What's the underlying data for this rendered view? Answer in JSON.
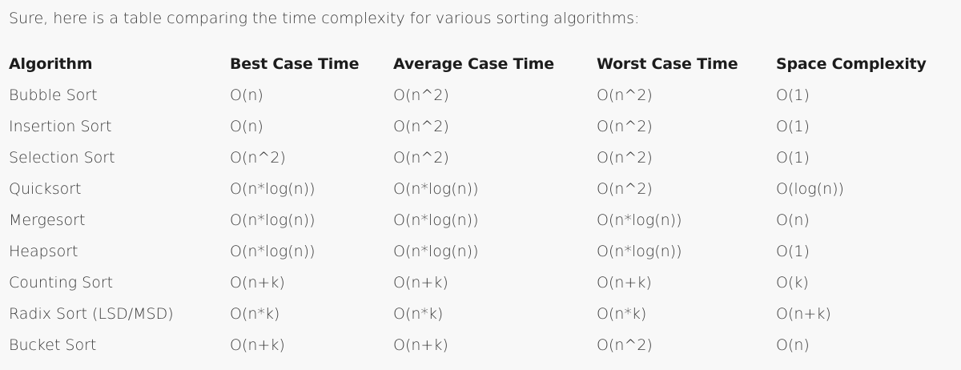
{
  "intro": "Sure, here is a table comparing the time complexity for various sorting algorithms:",
  "table": {
    "headers": [
      "Algorithm",
      "Best Case Time",
      "Average Case Time",
      "Worst Case Time",
      "Space Complexity"
    ],
    "rows": [
      [
        "Bubble Sort",
        "O(n)",
        "O(n^2)",
        "O(n^2)",
        "O(1)"
      ],
      [
        "Insertion Sort",
        "O(n)",
        "O(n^2)",
        "O(n^2)",
        "O(1)"
      ],
      [
        "Selection Sort",
        "O(n^2)",
        "O(n^2)",
        "O(n^2)",
        "O(1)"
      ],
      [
        "Quicksort",
        "O(n*log(n))",
        "O(n*log(n))",
        "O(n^2)",
        "O(log(n))"
      ],
      [
        "Mergesort",
        "O(n*log(n))",
        "O(n*log(n))",
        "O(n*log(n))",
        "O(n)"
      ],
      [
        "Heapsort",
        "O(n*log(n))",
        "O(n*log(n))",
        "O(n*log(n))",
        "O(1)"
      ],
      [
        "Counting Sort",
        "O(n+k)",
        "O(n+k)",
        "O(n+k)",
        "O(k)"
      ],
      [
        "Radix Sort (LSD/MSD)",
        "O(n*k)",
        "O(n*k)",
        "O(n*k)",
        "O(n+k)"
      ],
      [
        "Bucket Sort",
        "O(n+k)",
        "O(n+k)",
        "O(n^2)",
        "O(n)"
      ]
    ]
  }
}
